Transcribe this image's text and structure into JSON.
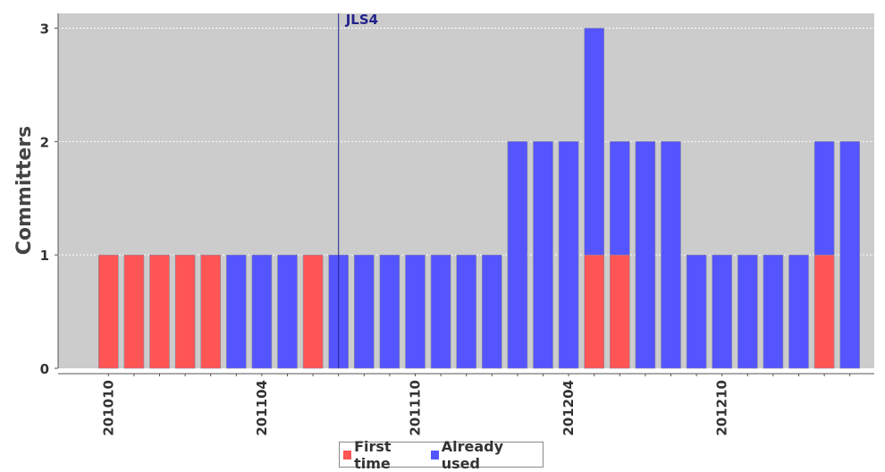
{
  "chart_data": {
    "type": "bar",
    "stacked": true,
    "ylabel": "Committers",
    "xlabel": "",
    "ylim": [
      0,
      3.13
    ],
    "yticks": [
      0,
      1,
      2,
      3
    ],
    "grid": true,
    "legend_position": "bottom",
    "plot_background": "#cccccc",
    "categories": [
      "201010",
      "201011",
      "201012",
      "201101",
      "201102",
      "201103",
      "201104",
      "201105",
      "201106",
      "201107",
      "201108",
      "201109",
      "201110",
      "201111",
      "201112",
      "201201",
      "201202",
      "201203",
      "201204",
      "201205",
      "201206",
      "201207",
      "201208",
      "201209",
      "201210",
      "201211",
      "201212",
      "201301",
      "201302",
      "201303"
    ],
    "xtick_labels": [
      "201010",
      "201104",
      "201110",
      "201204",
      "201210"
    ],
    "series": [
      {
        "name": "First time",
        "color": "#ff5555",
        "values": [
          1,
          1,
          1,
          1,
          1,
          0,
          0,
          0,
          1,
          0,
          0,
          0,
          0,
          0,
          0,
          0,
          0,
          0,
          0,
          1,
          1,
          0,
          0,
          0,
          0,
          0,
          0,
          0,
          1,
          0
        ]
      },
      {
        "name": "Already used",
        "color": "#5555ff",
        "values": [
          0,
          0,
          0,
          0,
          0,
          1,
          1,
          1,
          0,
          1,
          1,
          1,
          1,
          1,
          1,
          1,
          2,
          2,
          2,
          2,
          1,
          2,
          2,
          1,
          1,
          1,
          1,
          1,
          1,
          2
        ]
      }
    ],
    "markers": [
      {
        "label": "JLS4",
        "x": "201107",
        "color": "#22228a"
      }
    ]
  }
}
